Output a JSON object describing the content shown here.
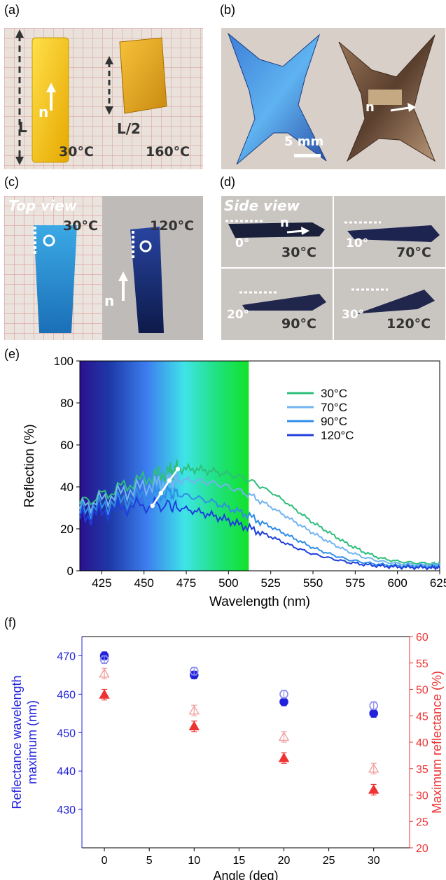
{
  "panels": {
    "a": {
      "label": "(a)",
      "text_L": "L",
      "text_L2": "L/2",
      "text_n": "n",
      "temp_left": "30°C",
      "temp_right": "160°C"
    },
    "b": {
      "label": "(b)",
      "text_n": "n",
      "scale_text": "5 mm"
    },
    "c": {
      "label": "(c)",
      "view": "Top view",
      "temp_left": "30°C",
      "temp_right": "120°C",
      "text_n": "n"
    },
    "d": {
      "label": "(d)",
      "view": "Side view",
      "text_n": "n",
      "cells": [
        {
          "angle": "0°",
          "temp": "30°C"
        },
        {
          "angle": "10°",
          "temp": "70°C"
        },
        {
          "angle": "20°",
          "temp": "90°C"
        },
        {
          "angle": "30°",
          "temp": "120°C"
        }
      ]
    },
    "e": {
      "label": "(e)"
    },
    "f": {
      "label": "(f)"
    }
  },
  "chart_data": [
    {
      "panel": "e",
      "type": "line",
      "xlabel": "Wavelength (nm)",
      "ylabel": "Reflection (%)",
      "xlim": [
        412,
        625
      ],
      "ylim": [
        0,
        100
      ],
      "xticks": [
        425,
        450,
        475,
        500,
        525,
        550,
        575,
        600,
        625
      ],
      "yticks": [
        0,
        20,
        40,
        60,
        80,
        100
      ],
      "legend_position": "top-right",
      "background_spectrum_range_nm": [
        412,
        512
      ],
      "x": [
        412,
        425,
        440,
        455,
        465,
        470,
        480,
        490,
        500,
        510,
        520,
        530,
        540,
        550,
        560,
        570,
        580,
        590,
        600,
        610,
        620,
        625
      ],
      "series": [
        {
          "name": "30°C",
          "color": "#2dbf7a",
          "values": [
            32,
            36,
            41,
            45,
            47,
            48.5,
            48.5,
            47.5,
            46,
            44,
            40,
            35,
            29,
            23,
            18,
            13,
            9,
            6,
            4.5,
            3.8,
            3.5,
            3.5
          ]
        },
        {
          "name": "70°C",
          "color": "#72b4f0",
          "values": [
            30,
            34,
            38,
            41,
            42.5,
            43,
            43,
            42,
            40,
            37,
            33,
            28,
            23,
            18,
            13.5,
            9.5,
            6.5,
            4.5,
            3.5,
            3,
            2.8,
            2.8
          ]
        },
        {
          "name": "90°C",
          "color": "#2f8ee8",
          "values": [
            28,
            31,
            34,
            36.5,
            37,
            36.5,
            35,
            33,
            30,
            27,
            23,
            19,
            15,
            11,
            8,
            5.5,
            4,
            3,
            2.5,
            2.2,
            2,
            2
          ]
        },
        {
          "name": "120°C",
          "color": "#1f3fdc",
          "values": [
            25,
            28,
            30.5,
            31.5,
            31,
            30,
            28.5,
            26.5,
            24,
            21,
            18,
            14.5,
            11,
            8,
            6,
            4.2,
            3,
            2.3,
            1.8,
            1.6,
            1.5,
            1.5
          ]
        }
      ],
      "peak_trace": {
        "color": "#ffffff",
        "x": [
          455,
          460,
          465,
          470
        ],
        "y": [
          31,
          37,
          43,
          48.5
        ]
      }
    },
    {
      "panel": "f",
      "type": "scatter",
      "xlabel": "Angle (deg)",
      "ylabel_left": "Reflectance wavelength maximum (nm)",
      "ylabel_left_lines": [
        "Reflectance wavelength",
        "maximum (nm)"
      ],
      "ylabel_right": "Maximum reflectance (%)",
      "xlim": [
        -2.5,
        34
      ],
      "xticks": [
        0,
        5,
        10,
        15,
        20,
        25,
        30
      ],
      "ylim_left": [
        420,
        475
      ],
      "yticks_left": [
        430,
        440,
        450,
        460,
        470
      ],
      "ylim_right": [
        20,
        60
      ],
      "yticks_right": [
        20,
        25,
        30,
        35,
        40,
        45,
        50,
        55,
        60
      ],
      "left_color": "#2222dd",
      "right_color": "#ee3333",
      "series": [
        {
          "axis": "left",
          "marker": "circle-filled",
          "color": "#2222dd",
          "x": [
            0,
            10,
            20,
            30
          ],
          "y": [
            470,
            465,
            458,
            455
          ],
          "err": [
            1,
            1,
            1,
            1
          ]
        },
        {
          "axis": "left",
          "marker": "circle-open",
          "color": "#8a8aee",
          "x": [
            0,
            10,
            20,
            30
          ],
          "y": [
            469,
            466,
            460,
            457
          ],
          "err": [
            1,
            1,
            1,
            1
          ]
        },
        {
          "axis": "right",
          "marker": "triangle-filled",
          "color": "#ee3333",
          "x": [
            0,
            10,
            20,
            30
          ],
          "y": [
            49,
            43,
            37,
            31
          ],
          "err": [
            1,
            1,
            1,
            1
          ]
        },
        {
          "axis": "right",
          "marker": "triangle-open",
          "color": "#f0a0a0",
          "x": [
            0,
            10,
            20,
            30
          ],
          "y": [
            53,
            46,
            41,
            35
          ],
          "err": [
            1,
            1,
            1,
            1
          ]
        }
      ]
    }
  ]
}
